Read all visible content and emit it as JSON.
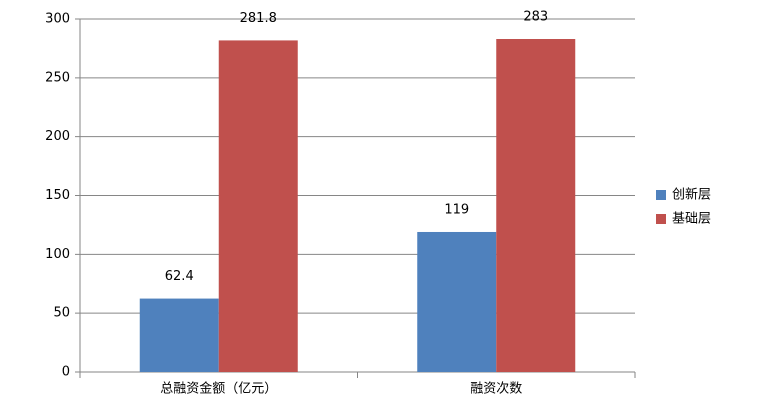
{
  "chart_data": {
    "type": "bar",
    "categories": [
      "总融资金额（亿元）",
      "融资次数"
    ],
    "series": [
      {
        "name": "创新层",
        "color": "#4f81bd",
        "values": [
          62.4,
          119
        ]
      },
      {
        "name": "基础层",
        "color": "#c0504d",
        "values": [
          281.8,
          283
        ]
      }
    ],
    "ylim": [
      0,
      300
    ],
    "yticks": [
      0,
      50,
      100,
      150,
      200,
      250,
      300
    ],
    "grid": true,
    "legend": "right"
  }
}
